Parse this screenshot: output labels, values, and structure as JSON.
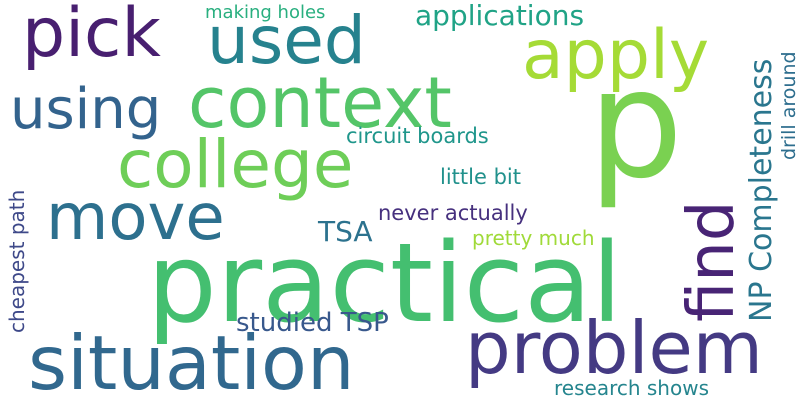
{
  "words": [
    {
      "id": "p",
      "text": "p",
      "color": "#7ad151"
    },
    {
      "id": "practical",
      "text": "practical",
      "color": "#44bf70"
    },
    {
      "id": "situation",
      "text": "situation",
      "color": "#31688e"
    },
    {
      "id": "problem",
      "text": "problem",
      "color": "#443a83"
    },
    {
      "id": "context",
      "text": "context",
      "color": "#54c568"
    },
    {
      "id": "college",
      "text": "college",
      "color": "#6ece58"
    },
    {
      "id": "apply",
      "text": "apply",
      "color": "#a5db36"
    },
    {
      "id": "pick",
      "text": "pick",
      "color": "#481f70"
    },
    {
      "id": "used",
      "text": "used",
      "color": "#26828e"
    },
    {
      "id": "using",
      "text": "using",
      "color": "#33638d"
    },
    {
      "id": "move",
      "text": "move",
      "color": "#2d708e"
    },
    {
      "id": "find",
      "text": "find",
      "color": "#482475"
    },
    {
      "id": "np_completeness",
      "text": "NP Completeness",
      "color": "#2a768e"
    },
    {
      "id": "applications",
      "text": "applications",
      "color": "#20a386"
    },
    {
      "id": "studied_tsp",
      "text": "studied TSP",
      "color": "#38588c"
    },
    {
      "id": "tsa",
      "text": "TSA",
      "color": "#2c728e"
    },
    {
      "id": "never_actually",
      "text": "never actually",
      "color": "#46307e"
    },
    {
      "id": "circuit_boards",
      "text": "circuit boards",
      "color": "#1f968b"
    },
    {
      "id": "little_bit",
      "text": "little bit",
      "color": "#21918c"
    },
    {
      "id": "pretty_much",
      "text": "pretty much",
      "color": "#a0da39"
    },
    {
      "id": "making_holes",
      "text": "making holes",
      "color": "#29af7f"
    },
    {
      "id": "drill_around",
      "text": "drill around",
      "color": "#2e6e8e"
    },
    {
      "id": "cheapest_path",
      "text": "cheapest path",
      "color": "#3e4989"
    },
    {
      "id": "research_shows",
      "text": "research shows",
      "color": "#25858e"
    }
  ]
}
